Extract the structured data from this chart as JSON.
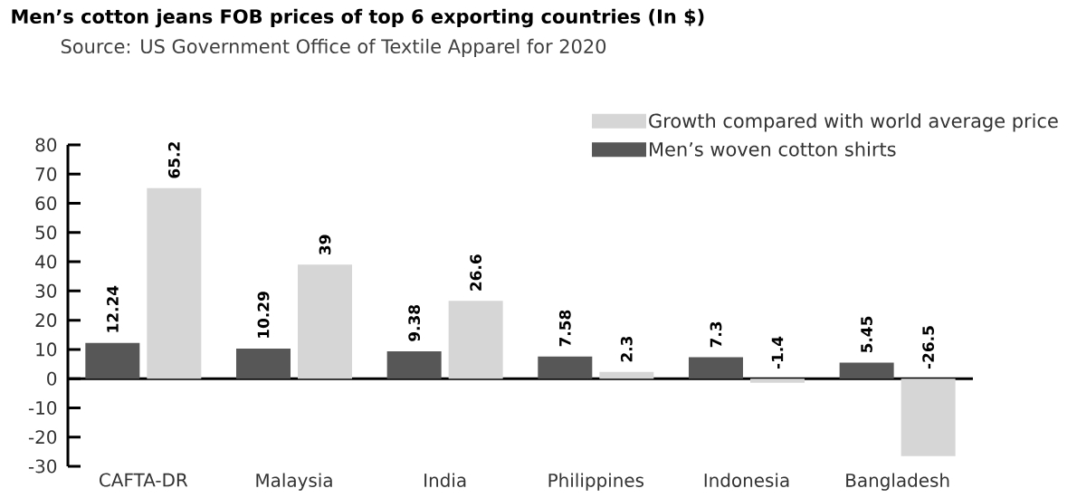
{
  "chart_data": {
    "type": "bar",
    "title": "Men’s cotton jeans FOB prices of top 6 exporting countries (In $)",
    "subtitle": "Source: US Government Office of Textile Apparel for 2020",
    "categories": [
      "CAFTA-DR",
      "Malaysia",
      "India",
      "Philippines",
      "Indonesia",
      "Bangladesh"
    ],
    "series": [
      {
        "name": "Men’s woven cotton shirts",
        "color": "#575757",
        "values": [
          12.24,
          10.29,
          9.38,
          7.58,
          7.3,
          5.45
        ]
      },
      {
        "name": "Growth compared with world average price",
        "color": "#d6d6d6",
        "values": [
          65.2,
          39,
          26.6,
          2.3,
          -1.4,
          -26.5
        ]
      }
    ],
    "ylim": [
      -30,
      80
    ],
    "yticks": [
      -30,
      -20,
      -10,
      0,
      10,
      20,
      30,
      40,
      50,
      60,
      70,
      80
    ],
    "data_labels": true,
    "legend": "top right"
  }
}
